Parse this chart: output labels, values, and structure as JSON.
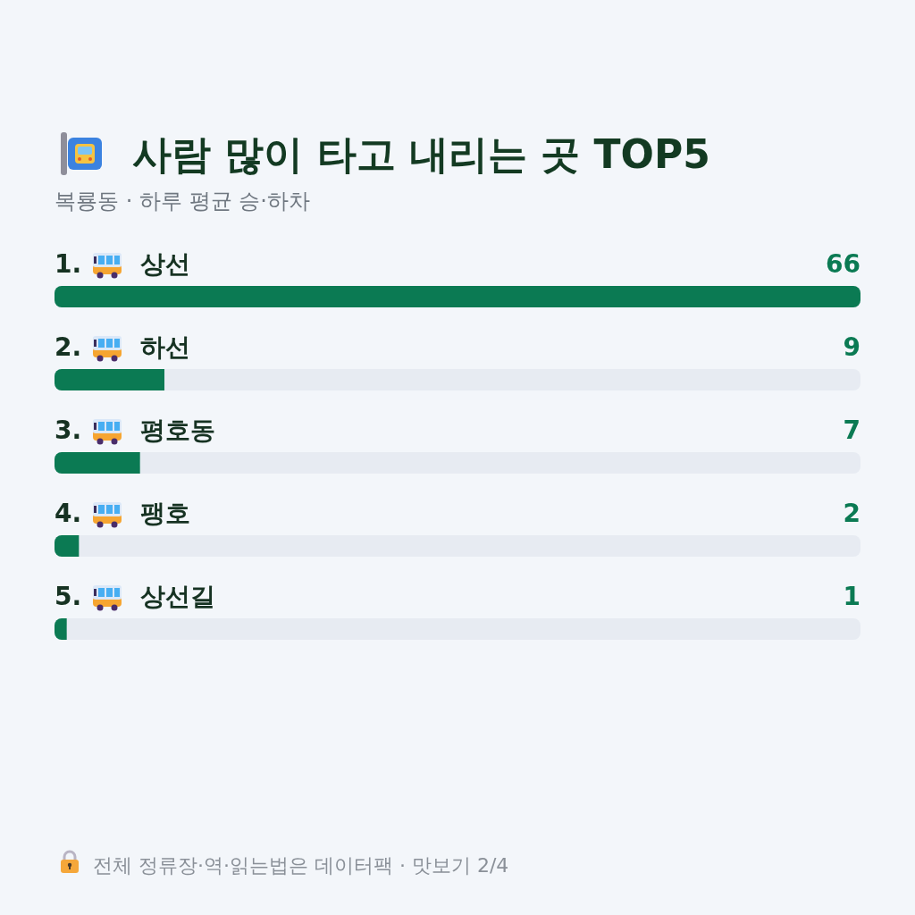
{
  "chart_data": {
    "type": "bar",
    "orientation": "horizontal",
    "title": "사람 많이 타고 내리는 곳 TOP5",
    "subtitle": "복룡동 · 하루 평균 승·하차",
    "categories": [
      "1. 상선",
      "2. 하선",
      "3. 평호동",
      "4. 팽호",
      "5. 상선길"
    ],
    "values": [
      66,
      9,
      7,
      2,
      1
    ],
    "color": "#0b7a53",
    "data_labels": true,
    "annotations": [
      "전체 정류장·역·읽는법은 데이터팩 · 맛보기 2/4"
    ]
  }
}
